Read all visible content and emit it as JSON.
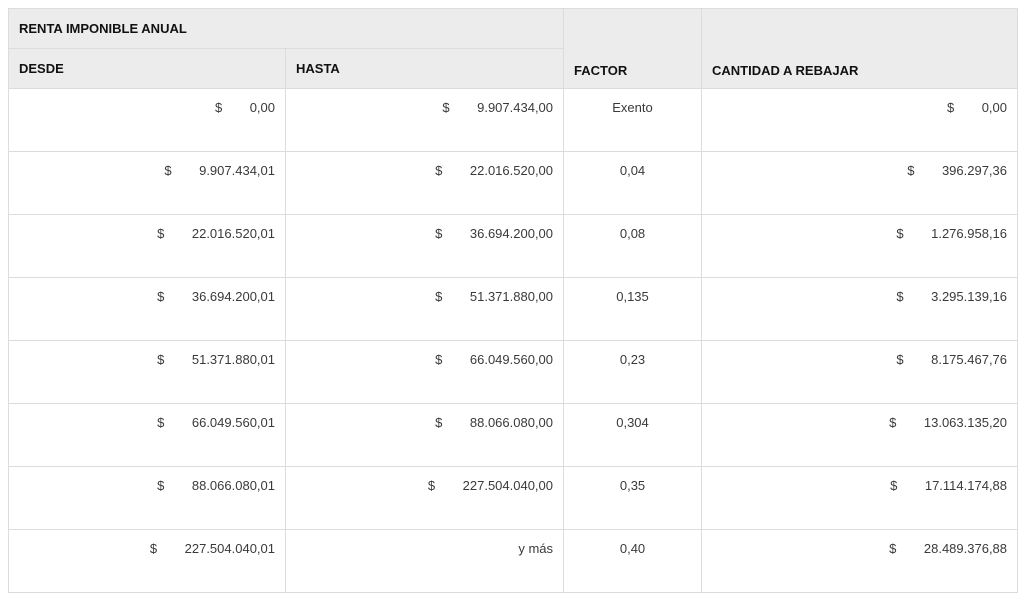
{
  "table": {
    "group_header": "RENTA IMPONIBLE ANUAL",
    "headers": {
      "desde": "DESDE",
      "hasta": "HASTA",
      "factor": "FACTOR",
      "cantidad": "CANTIDAD A REBAJAR"
    },
    "currency": "$",
    "rows": [
      {
        "desde": "0,00",
        "hasta": "9.907.434,00",
        "factor": "Exento",
        "cantidad": "0,00"
      },
      {
        "desde": "9.907.434,01",
        "hasta": "22.016.520,00",
        "factor": "0,04",
        "cantidad": "396.297,36"
      },
      {
        "desde": "22.016.520,01",
        "hasta": "36.694.200,00",
        "factor": "0,08",
        "cantidad": "1.276.958,16"
      },
      {
        "desde": "36.694.200,01",
        "hasta": "51.371.880,00",
        "factor": "0,135",
        "cantidad": "3.295.139,16"
      },
      {
        "desde": "51.371.880,01",
        "hasta": "66.049.560,00",
        "factor": "0,23",
        "cantidad": "8.175.467,76"
      },
      {
        "desde": "66.049.560,01",
        "hasta": "88.066.080,00",
        "factor": "0,304",
        "cantidad": "13.063.135,20"
      },
      {
        "desde": "88.066.080,01",
        "hasta": "227.504.040,00",
        "factor": "0,35",
        "cantidad": "17.114.174,88"
      },
      {
        "desde": "227.504.040,01",
        "hasta": "y más",
        "factor": "0,40",
        "cantidad": "28.489.376,88"
      }
    ]
  }
}
